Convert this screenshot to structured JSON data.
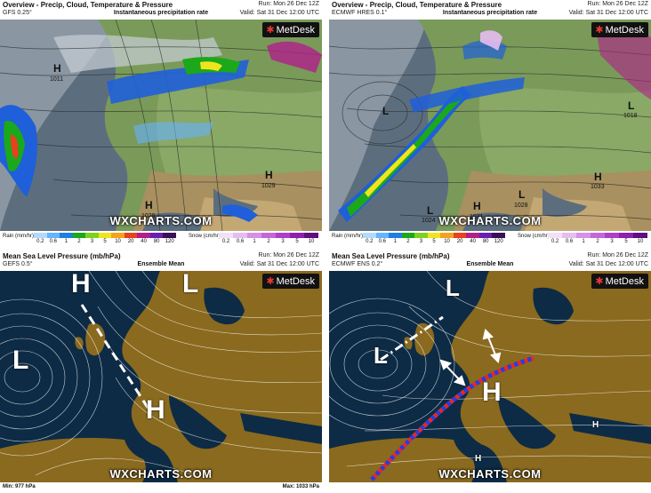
{
  "panels": {
    "gfs_precip": {
      "title": "Overview - Precip, Cloud, Temperature & Pressure",
      "model": "GFS 0.25°",
      "subtitle": "Instantaneous precipitation rate",
      "run": "Run: Mon 26 Dec 12Z",
      "valid": "Valid: Sat 31 Dec 12:00 UTC",
      "centers": [
        {
          "type": "H",
          "value": "1011"
        },
        {
          "type": "H",
          "value": "1029"
        },
        {
          "type": "H",
          "value": "1029"
        }
      ]
    },
    "ecmwf_precip": {
      "title": "Overview - Precip, Cloud, Temperature & Pressure",
      "model": "ECMWF HRES 0.1°",
      "subtitle": "Instantaneous precipitation rate",
      "run": "Run: Mon 26 Dec 12Z",
      "valid": "Valid: Sat 31 Dec 12:00 UTC",
      "centers": [
        {
          "type": "L",
          "value": ""
        },
        {
          "type": "L",
          "value": "1018"
        },
        {
          "type": "H",
          "value": "1033"
        },
        {
          "type": "L",
          "value": "1028"
        },
        {
          "type": "H",
          "value": "1031"
        },
        {
          "type": "L",
          "value": "1024"
        }
      ]
    },
    "gfs_mslp": {
      "title": "Mean Sea Level Pressure (mb/hPa)",
      "model": "GEFS 0.5°",
      "subtitle": "Ensemble Mean",
      "run": "Run: Mon 26 Dec 12Z",
      "valid": "Valid: Sat 31 Dec 12:00 UTC",
      "labels": [
        "H",
        "L",
        "L",
        "H"
      ],
      "footer_min": "Min: 977 hPa",
      "footer_max": "Max: 1033 hPa"
    },
    "ecmwf_mslp": {
      "title": "Mean Sea Level Pressure (mb/hPa)",
      "model": "ECMWF ENS 0.2°",
      "subtitle": "Ensemble Mean",
      "run": "Run: Mon 26 Dec 12Z",
      "valid": "Valid: Sat 31 Dec 12:00 UTC",
      "labels": [
        "L",
        "L",
        "H",
        "H",
        "H"
      ]
    }
  },
  "logo_text": "MetDesk",
  "brand": "WXCHARTS.COM",
  "legend": {
    "rain_label": "Rain (mm/hr)",
    "rain_ticks": [
      "0.2",
      "0.6",
      "1",
      "2",
      "3",
      "5",
      "10",
      "20",
      "40",
      "80",
      "120"
    ],
    "snow_label": "Snow (cm/hr)",
    "snow_ticks": [
      "0.2",
      "0.6",
      "1",
      "2",
      "3",
      "5",
      "10"
    ],
    "rain_colors": [
      "#b3d9ff",
      "#66b3ff",
      "#1f7fe0",
      "#1ba81b",
      "#7fd11f",
      "#f0e41f",
      "#f5a21f",
      "#e8411f",
      "#b01f8a",
      "#6a1fb0",
      "#3a0f5a"
    ],
    "snow_colors": [
      "#f3e0f7",
      "#e6bdf0",
      "#d690e6",
      "#c466d9",
      "#ad3fc9",
      "#8e1fb0",
      "#5f0f80"
    ]
  },
  "colors": {
    "sea_dark": "#0d2b45",
    "land_brown": "#8a6a1f",
    "precip_blue": "#1f5fd9",
    "front_red": "#e8281f",
    "front_blue": "#1f3fe8",
    "land_green": "#7a9a5a"
  }
}
